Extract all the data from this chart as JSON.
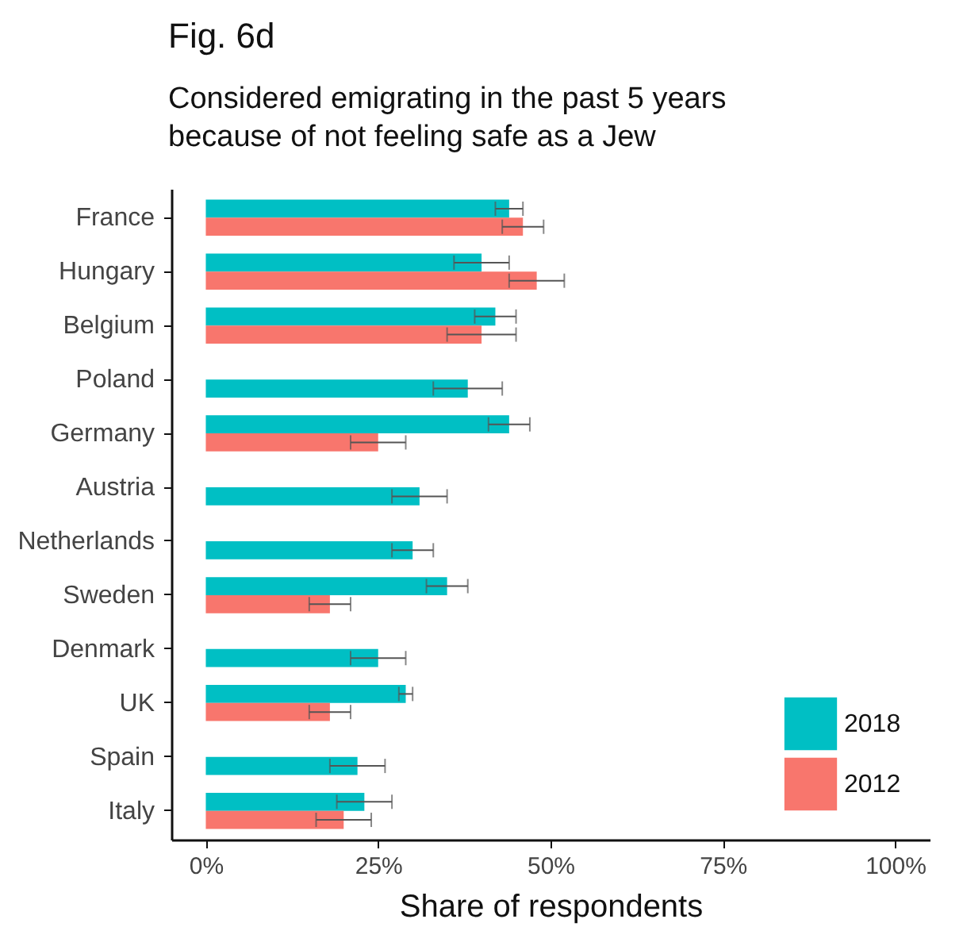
{
  "chart_data": {
    "type": "bar",
    "orientation": "horizontal",
    "title": "Fig. 6d",
    "subtitle": "Considered emigrating in the past 5 years\nbecause of not feeling safe as a Jew",
    "xlabel": "Share of respondents",
    "categories": [
      "France",
      "Hungary",
      "Belgium",
      "Poland",
      "Germany",
      "Austria",
      "Netherlands",
      "Sweden",
      "Denmark",
      "UK",
      "Spain",
      "Italy"
    ],
    "series": [
      {
        "name": "2018",
        "color": "#00bfc4",
        "values": [
          44,
          40,
          42,
          38,
          44,
          31,
          30,
          35,
          25,
          29,
          22,
          23
        ],
        "errors": [
          [
            42,
            46
          ],
          [
            36,
            44
          ],
          [
            39,
            45
          ],
          [
            33,
            43
          ],
          [
            41,
            47
          ],
          [
            27,
            35
          ],
          [
            27,
            33
          ],
          [
            32,
            38
          ],
          [
            21,
            29
          ],
          [
            28,
            30
          ],
          [
            18,
            26
          ],
          [
            19,
            27
          ]
        ]
      },
      {
        "name": "2012",
        "color": "#f8766d",
        "values": [
          46,
          48,
          40,
          null,
          25,
          null,
          null,
          18,
          null,
          18,
          null,
          20
        ],
        "errors": [
          [
            43,
            49
          ],
          [
            44,
            52
          ],
          [
            35,
            45
          ],
          null,
          [
            21,
            29
          ],
          null,
          null,
          [
            15,
            21
          ],
          null,
          [
            15,
            21
          ],
          null,
          [
            16,
            24
          ]
        ]
      }
    ],
    "xlim": [
      -5,
      105
    ],
    "xticks": [
      {
        "value": 0,
        "label": "0%"
      },
      {
        "value": 25,
        "label": "25%"
      },
      {
        "value": 50,
        "label": "50%"
      },
      {
        "value": 75,
        "label": "75%"
      },
      {
        "value": 100,
        "label": "100%"
      }
    ],
    "grid": false,
    "legend": "bottom right"
  }
}
